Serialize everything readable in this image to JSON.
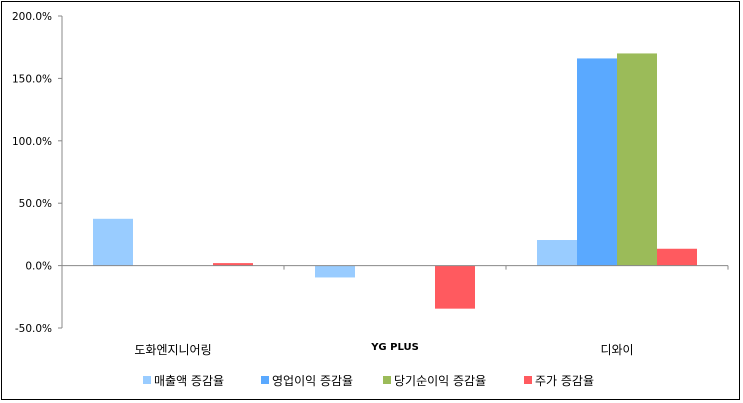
{
  "chart_data": {
    "type": "bar",
    "categories": [
      "도화엔지니어링",
      "YG PLUS",
      "디와이"
    ],
    "series": [
      {
        "name": "매출액 증감율",
        "color": "#99ccff",
        "values": [
          37.5,
          -9.5,
          20.5
        ]
      },
      {
        "name": "영업이익 증감율",
        "color": "#5aa9ff",
        "values": [
          null,
          null,
          166.0
        ]
      },
      {
        "name": "당기순이익 증감율",
        "color": "#9bbb59",
        "values": [
          null,
          null,
          170.0
        ]
      },
      {
        "name": "주가 증감율",
        "color": "#ff5a5f",
        "values": [
          2.0,
          -34.5,
          13.5
        ]
      }
    ],
    "yticks": [
      "200.0%",
      "150.0%",
      "100.0%",
      "50.0%",
      "0.0%",
      "-50.0%"
    ],
    "ytick_values": [
      200,
      150,
      100,
      50,
      0,
      -50
    ],
    "ylim": [
      -50,
      200
    ],
    "grid": false,
    "legend_position": "bottom"
  }
}
